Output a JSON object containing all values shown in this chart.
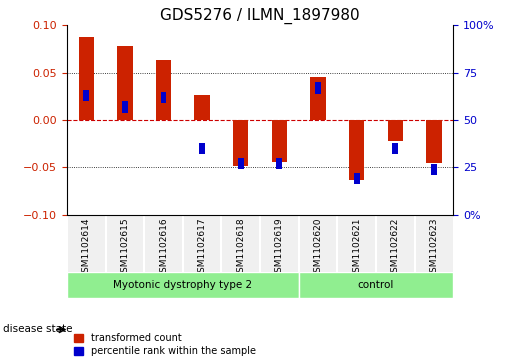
{
  "title": "GDS5276 / ILMN_1897980",
  "samples": [
    "GSM1102614",
    "GSM1102615",
    "GSM1102616",
    "GSM1102617",
    "GSM1102618",
    "GSM1102619",
    "GSM1102620",
    "GSM1102621",
    "GSM1102622",
    "GSM1102623"
  ],
  "transformed_count": [
    0.088,
    0.078,
    0.063,
    0.027,
    -0.048,
    -0.044,
    0.045,
    -0.063,
    -0.022,
    -0.045
  ],
  "percentile_rank": [
    0.63,
    0.57,
    0.62,
    0.35,
    0.27,
    0.27,
    0.67,
    0.19,
    0.35,
    0.24
  ],
  "groups": [
    {
      "label": "Myotonic dystrophy type 2",
      "start": 0,
      "end": 6,
      "color": "#90ee90"
    },
    {
      "label": "control",
      "start": 6,
      "end": 10,
      "color": "#90ee90"
    }
  ],
  "ylim": [
    -0.1,
    0.1
  ],
  "yticks_left": [
    -0.1,
    -0.05,
    0,
    0.05,
    0.1
  ],
  "yticks_right": [
    0,
    25,
    50,
    75,
    100
  ],
  "bar_color_red": "#cc2200",
  "bar_color_blue": "#0000cc",
  "grid_color": "#000000",
  "zero_line_color": "#cc0000",
  "bg_color": "#f0f0f0",
  "disease_state_label": "disease state",
  "legend_red": "transformed count",
  "legend_blue": "percentile rank within the sample"
}
